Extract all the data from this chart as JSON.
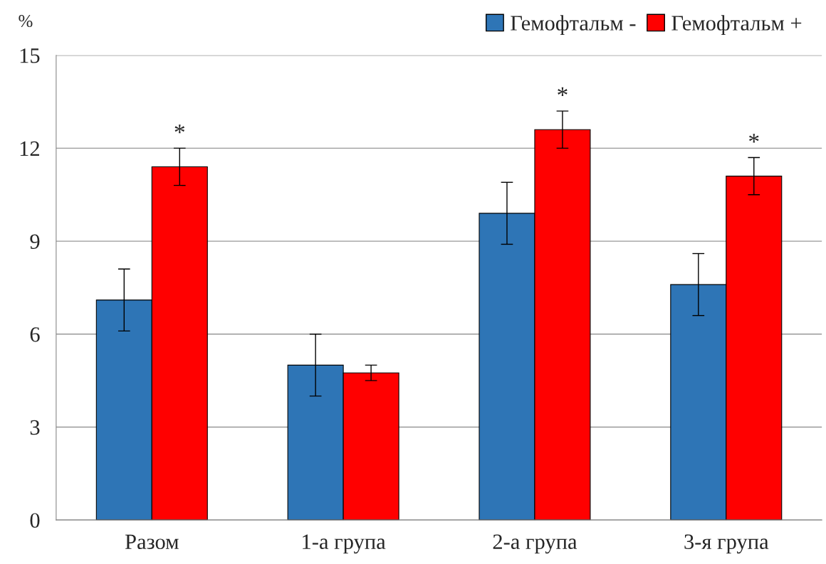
{
  "chart_data": {
    "type": "bar",
    "ylabel": "%",
    "categories": [
      "Разом",
      "1-а група",
      "2-а група",
      "3-я група"
    ],
    "series": [
      {
        "name": "Гемофтальм -",
        "color": "#2e75b6",
        "values": [
          7.1,
          5.0,
          9.9,
          7.6
        ],
        "errors": [
          1.0,
          1.0,
          1.0,
          1.0
        ]
      },
      {
        "name": "Гемофтальм +",
        "color": "#ff0000",
        "values": [
          11.4,
          4.75,
          12.6,
          11.1
        ],
        "errors": [
          0.6,
          0.25,
          0.6,
          0.6
        ]
      }
    ],
    "ylim": [
      0,
      15
    ],
    "yticks": [
      0,
      3,
      6,
      9,
      12,
      15
    ],
    "grid": "y",
    "legend": "top right",
    "annotations": [
      {
        "text": "*",
        "x": "Разом",
        "y": 11.4
      },
      {
        "text": "*",
        "x": "2-а група",
        "y": 12.6
      },
      {
        "text": "*",
        "x": "3-я група",
        "y": 11.1
      }
    ]
  }
}
